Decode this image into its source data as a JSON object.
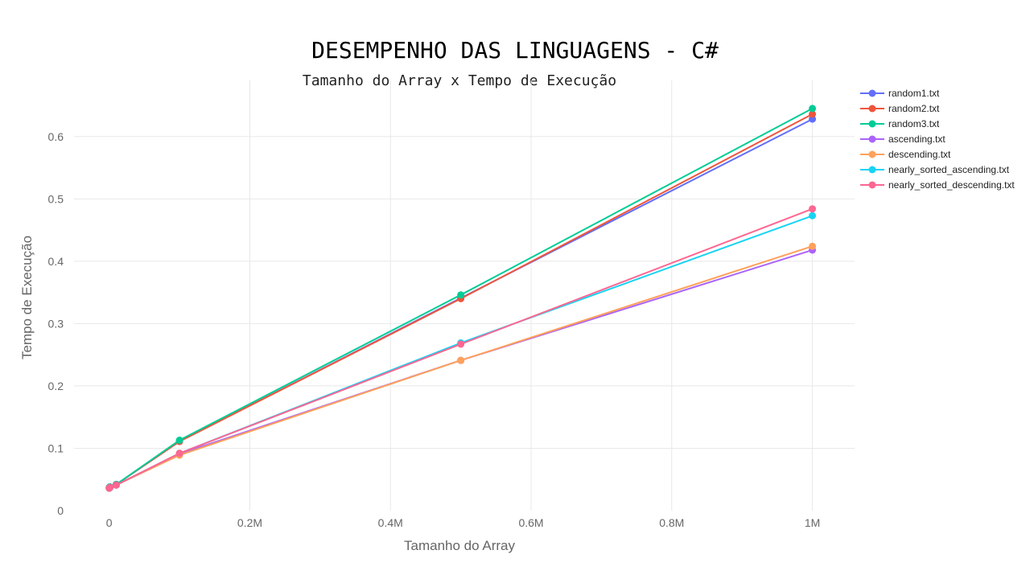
{
  "chart_data": {
    "type": "line",
    "title": "DESEMPENHO DAS LINGUAGENS - C#",
    "subtitle": "Tamanho do Array x Tempo de Execução",
    "xlabel": "Tamanho do Array",
    "ylabel": "Tempo de Execução",
    "xlim": [
      -50000,
      1060000
    ],
    "ylim": [
      0,
      0.69
    ],
    "grid": true,
    "legend_position": "top-right",
    "x_ticks": [
      {
        "value": 0,
        "label": "0"
      },
      {
        "value": 200000,
        "label": "0.2M"
      },
      {
        "value": 400000,
        "label": "0.4M"
      },
      {
        "value": 600000,
        "label": "0.6M"
      },
      {
        "value": 800000,
        "label": "0.8M"
      },
      {
        "value": 1000000,
        "label": "1M"
      }
    ],
    "y_ticks": [
      {
        "value": 0,
        "label": "0"
      },
      {
        "value": 0.1,
        "label": "0.1"
      },
      {
        "value": 0.2,
        "label": "0.2"
      },
      {
        "value": 0.3,
        "label": "0.3"
      },
      {
        "value": 0.4,
        "label": "0.4"
      },
      {
        "value": 0.5,
        "label": "0.5"
      },
      {
        "value": 0.6,
        "label": "0.6"
      }
    ],
    "x": [
      100,
      1000,
      10000,
      100000,
      500000,
      1000000
    ],
    "series": [
      {
        "name": "random1.txt",
        "color": "#636efa",
        "values": [
          0.037,
          0.038,
          0.042,
          0.111,
          0.341,
          0.628
        ]
      },
      {
        "name": "random2.txt",
        "color": "#ef553b",
        "values": [
          0.037,
          0.038,
          0.042,
          0.111,
          0.34,
          0.636
        ]
      },
      {
        "name": "random3.txt",
        "color": "#00cc96",
        "values": [
          0.037,
          0.038,
          0.042,
          0.113,
          0.346,
          0.645
        ]
      },
      {
        "name": "ascending.txt",
        "color": "#ab63fa",
        "values": [
          0.036,
          0.037,
          0.041,
          0.091,
          0.241,
          0.418
        ]
      },
      {
        "name": "descending.txt",
        "color": "#ffa15a",
        "values": [
          0.036,
          0.037,
          0.041,
          0.089,
          0.241,
          0.424
        ]
      },
      {
        "name": "nearly_sorted_ascending.txt",
        "color": "#19d3f3",
        "values": [
          0.036,
          0.037,
          0.041,
          0.092,
          0.269,
          0.473
        ]
      },
      {
        "name": "nearly_sorted_descending.txt",
        "color": "#ff6692",
        "values": [
          0.036,
          0.037,
          0.041,
          0.092,
          0.267,
          0.484
        ]
      }
    ]
  }
}
